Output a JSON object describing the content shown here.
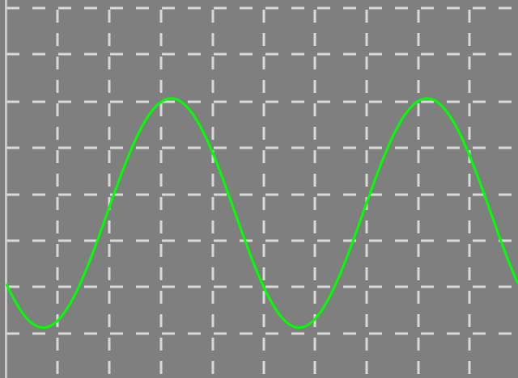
{
  "colors": {
    "screen_background": "#7f7f7f",
    "grid": "#d9d9d9",
    "trace": "#00ff00",
    "left_edge": "#c8c8c8"
  },
  "chart_data": {
    "type": "line",
    "title": "",
    "xlabel": "",
    "ylabel": "",
    "grid": true,
    "grid_style": "dashed",
    "legend": "none",
    "xlim": [
      0,
      10
    ],
    "ylim": [
      -4,
      4
    ],
    "series": [
      {
        "color": "#00ff00",
        "waveform": "sine",
        "amplitude": 2.5,
        "period": 5,
        "offset": -0.4,
        "x_of_first_minimum": 0.72
      }
    ]
  }
}
